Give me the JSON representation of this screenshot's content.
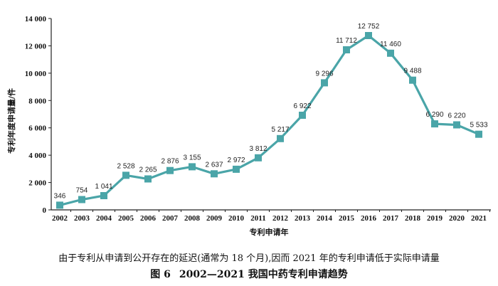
{
  "chart_data": {
    "type": "line",
    "xlabel": "专利申请年",
    "ylabel": "专利年度申请量/件",
    "ylim": [
      0,
      14000
    ],
    "yticks": [
      0,
      2000,
      4000,
      6000,
      8000,
      10000,
      12000,
      14000
    ],
    "ytick_labels": [
      "0",
      "2 000",
      "4 000",
      "6 000",
      "8 000",
      "10 000",
      "12 000",
      "14 000"
    ],
    "grid": false,
    "legend": "none",
    "color": "#4aa5a8",
    "categories": [
      "2002",
      "2003",
      "2004",
      "2005",
      "2006",
      "2007",
      "2008",
      "2009",
      "2010",
      "2011",
      "2012",
      "2013",
      "2014",
      "2015",
      "2016",
      "2017",
      "2018",
      "2019",
      "2020",
      "2021"
    ],
    "values": [
      346,
      754,
      1041,
      2528,
      2265,
      2876,
      3155,
      2637,
      2972,
      3812,
      5217,
      6922,
      9296,
      11712,
      12752,
      11460,
      9488,
      6290,
      6220,
      5533
    ],
    "value_labels": [
      "346",
      "754",
      "1 041",
      "2 528",
      "2 265",
      "2 876",
      "3 155",
      "2 637",
      "2 972",
      "3 812",
      "5 217",
      "6 922",
      "9 296",
      "11 712",
      "12 752",
      "11 460",
      "9 488",
      "6 290",
      "6 220",
      "5 533"
    ]
  },
  "note": "由于专利从申请到公开存在的延迟(通常为 18 个月),因而 2021 年的专利申请低于实际申请量",
  "caption": {
    "label": "图 6",
    "title": "2002—2021 我国中药专利申请趋势"
  }
}
